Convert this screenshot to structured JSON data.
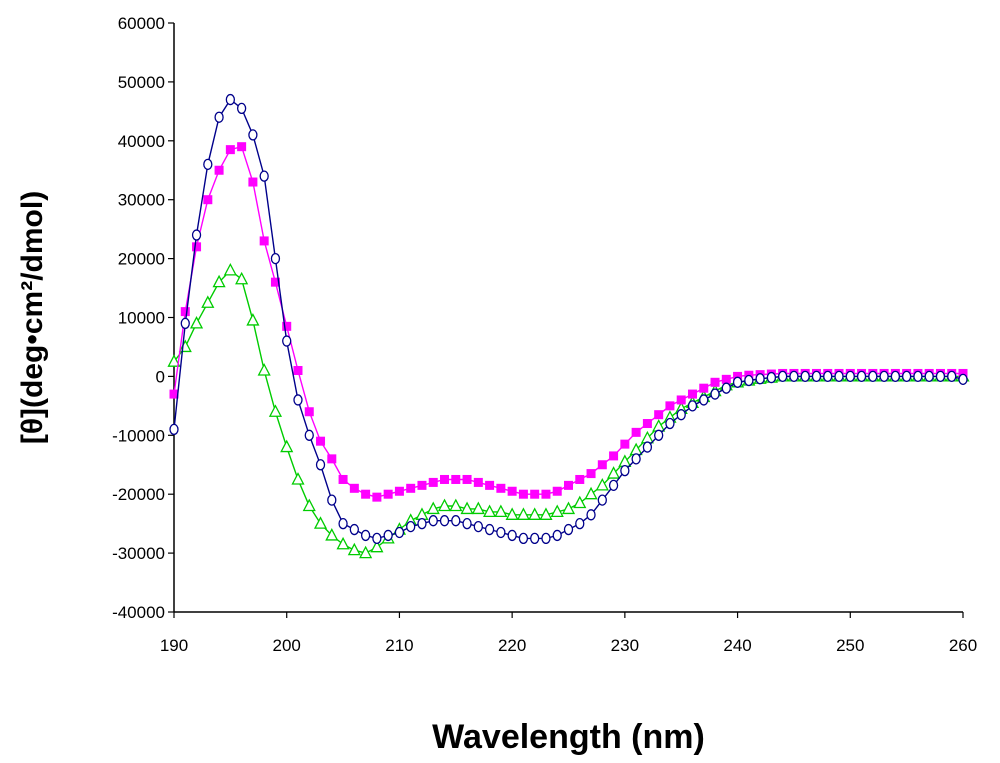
{
  "chart_data": {
    "type": "scatter",
    "title": "",
    "xlabel": "Wavelength (nm)",
    "ylabel": "[θ](deg•cm²/dmol)",
    "xlim": [
      190,
      260
    ],
    "ylim": [
      -40000,
      60000
    ],
    "xticks": [
      "190",
      "200",
      "210",
      "220",
      "230",
      "240",
      "250",
      "260"
    ],
    "yticks": [
      "60000",
      "50000",
      "40000",
      "30000",
      "20000",
      "10000",
      "0",
      "-10000",
      "-20000",
      "-30000",
      "-40000"
    ],
    "grid": false,
    "series": [
      {
        "name": "open-circle-series",
        "marker": "circle-open",
        "color": "#00008b",
        "x": [
          190,
          191,
          192,
          193,
          194,
          195,
          196,
          197,
          198,
          199,
          200,
          201,
          202,
          203,
          204,
          205,
          206,
          207,
          208,
          209,
          210,
          211,
          212,
          213,
          214,
          215,
          216,
          217,
          218,
          219,
          220,
          221,
          222,
          223,
          224,
          225,
          226,
          227,
          228,
          229,
          230,
          231,
          232,
          233,
          234,
          235,
          236,
          237,
          238,
          239,
          240,
          241,
          242,
          243,
          244,
          245,
          246,
          247,
          248,
          249,
          250,
          251,
          252,
          253,
          254,
          255,
          256,
          257,
          258,
          259,
          260
        ],
        "y": [
          -9000,
          9000,
          24000,
          36000,
          44000,
          47000,
          45500,
          41000,
          34000,
          20000,
          6000,
          -4000,
          -10000,
          -15000,
          -21000,
          -25000,
          -26000,
          -27000,
          -27500,
          -27000,
          -26500,
          -25500,
          -25000,
          -24500,
          -24500,
          -24500,
          -25000,
          -25500,
          -26000,
          -26500,
          -27000,
          -27500,
          -27500,
          -27500,
          -27000,
          -26000,
          -25000,
          -23500,
          -21000,
          -18500,
          -16000,
          -14000,
          -12000,
          -10000,
          -8000,
          -6500,
          -5000,
          -4000,
          -3000,
          -2000,
          -1000,
          -700,
          -400,
          -200,
          0,
          0,
          0,
          0,
          0,
          0,
          0,
          0,
          0,
          0,
          0,
          0,
          0,
          0,
          0,
          0,
          -500
        ]
      },
      {
        "name": "filled-square-series",
        "marker": "square-filled",
        "color": "#ff00ff",
        "x": [
          190,
          191,
          192,
          193,
          194,
          195,
          196,
          197,
          198,
          199,
          200,
          201,
          202,
          203,
          204,
          205,
          206,
          207,
          208,
          209,
          210,
          211,
          212,
          213,
          214,
          215,
          216,
          217,
          218,
          219,
          220,
          221,
          222,
          223,
          224,
          225,
          226,
          227,
          228,
          229,
          230,
          231,
          232,
          233,
          234,
          235,
          236,
          237,
          238,
          239,
          240,
          241,
          242,
          243,
          244,
          245,
          246,
          247,
          248,
          249,
          250,
          251,
          252,
          253,
          254,
          255,
          256,
          257,
          258,
          259,
          260
        ],
        "y": [
          -3000,
          11000,
          22000,
          30000,
          35000,
          38500,
          39000,
          33000,
          23000,
          16000,
          8500,
          1000,
          -6000,
          -11000,
          -14000,
          -17500,
          -19000,
          -20000,
          -20500,
          -20000,
          -19500,
          -19000,
          -18500,
          -18000,
          -17500,
          -17500,
          -17500,
          -18000,
          -18500,
          -19000,
          -19500,
          -20000,
          -20000,
          -20000,
          -19500,
          -18500,
          -17500,
          -16500,
          -15000,
          -13500,
          -11500,
          -9500,
          -8000,
          -6500,
          -5000,
          -4000,
          -3000,
          -2000,
          -1000,
          -500,
          0,
          200,
          300,
          400,
          500,
          500,
          500,
          500,
          500,
          500,
          500,
          500,
          500,
          500,
          500,
          500,
          500,
          500,
          500,
          500,
          500
        ]
      },
      {
        "name": "open-triangle-series",
        "marker": "triangle-open",
        "color": "#00cc00",
        "x": [
          190,
          191,
          192,
          193,
          194,
          195,
          196,
          197,
          198,
          199,
          200,
          201,
          202,
          203,
          204,
          205,
          206,
          207,
          208,
          209,
          210,
          211,
          212,
          213,
          214,
          215,
          216,
          217,
          218,
          219,
          220,
          221,
          222,
          223,
          224,
          225,
          226,
          227,
          228,
          229,
          230,
          231,
          232,
          233,
          234,
          235,
          236,
          237,
          238,
          239,
          240,
          241,
          242,
          243,
          244,
          245,
          246,
          247,
          248,
          249,
          250,
          251,
          252,
          253,
          254,
          255,
          256,
          257,
          258,
          259,
          260
        ],
        "y": [
          2500,
          5000,
          9000,
          12500,
          16000,
          18000,
          16500,
          9500,
          1000,
          -6000,
          -12000,
          -17500,
          -22000,
          -25000,
          -27000,
          -28500,
          -29500,
          -30000,
          -29000,
          -27500,
          -26000,
          -24500,
          -23500,
          -22500,
          -22000,
          -22000,
          -22500,
          -22500,
          -23000,
          -23000,
          -23500,
          -23500,
          -23500,
          -23500,
          -23000,
          -22500,
          -21500,
          -20000,
          -18500,
          -16500,
          -14500,
          -12500,
          -10500,
          -8500,
          -7000,
          -5500,
          -4500,
          -3500,
          -2500,
          -1500,
          -1000,
          -700,
          -400,
          -200,
          0,
          0,
          0,
          0,
          0,
          0,
          0,
          0,
          0,
          0,
          0,
          0,
          0,
          0,
          0,
          0,
          0
        ]
      }
    ]
  }
}
